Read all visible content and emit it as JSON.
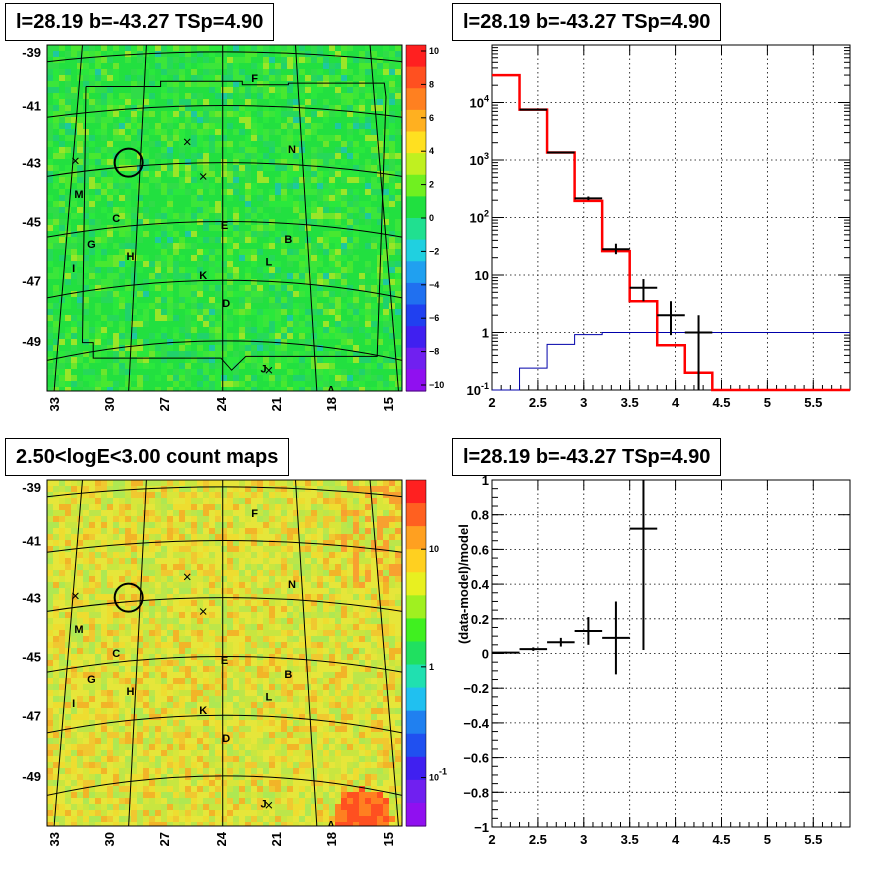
{
  "titles": {
    "tl": "l=28.19 b=-43.27 TSp=4.90",
    "tr": "l=28.19 b=-43.27 TSp=4.90",
    "bl": "2.50<logE<3.00 count maps",
    "br": "l=28.19 b=-43.27 TSp=4.90"
  },
  "colors": {
    "map_green": "#27e63a",
    "map_yellow": "#e6e63a",
    "model": "#ff0000",
    "data": "#000000",
    "bkg": "#0000aa"
  },
  "chart_data": [
    {
      "type": "heatmap",
      "title": "l=28.19 b=-43.27 TSp=4.90",
      "x_ticks": [
        "33",
        "30",
        "27",
        "24",
        "21",
        "18",
        "15"
      ],
      "y_ticks": [
        "-39",
        "-41",
        "-43",
        "-45",
        "-47",
        "-49"
      ],
      "colorbar": {
        "labels": [
          "10",
          "8",
          "6",
          "4",
          "2",
          "0",
          "−2",
          "−4",
          "−6",
          "−8",
          "−10"
        ],
        "range": [
          -10,
          10
        ]
      },
      "source_labels": [
        "F",
        "N",
        "M",
        "C",
        "E",
        "B",
        "G",
        "H",
        "I",
        "L",
        "K",
        "D",
        "J",
        "A"
      ]
    },
    {
      "type": "line",
      "title": "l=28.19 b=-43.27 TSp=4.90",
      "y_scale": "log",
      "xlim": [
        2.0,
        5.9
      ],
      "ylim": [
        0.1,
        100000
      ],
      "x_ticks": [
        "2",
        "2.5",
        "3",
        "3.5",
        "4",
        "4.5",
        "5",
        "5.5"
      ],
      "y_ticks": [
        "10^-1",
        "1",
        "10",
        "10^2",
        "10^3",
        "10^4"
      ],
      "edges": [
        2.0,
        2.3,
        2.6,
        2.9,
        3.2,
        3.5,
        3.8,
        4.1,
        4.4,
        5.9
      ],
      "series": [
        {
          "kind": "model",
          "values": [
            30000,
            7500,
            1350,
            195,
            26,
            3.5,
            0.6,
            0.2,
            0.1
          ]
        },
        {
          "kind": "background",
          "values": [
            0.1,
            0.24,
            0.62,
            0.92,
            1.0,
            1.0,
            1.0,
            1.0,
            1.0
          ]
        },
        {
          "kind": "data",
          "points": [
            {
              "x": 2.45,
              "y": 7500,
              "lo": 7400,
              "hi": 7650,
              "dx": 0.15
            },
            {
              "x": 2.75,
              "y": 1350,
              "lo": 1300,
              "hi": 1400,
              "dx": 0.15
            },
            {
              "x": 3.05,
              "y": 215,
              "lo": 200,
              "hi": 232,
              "dx": 0.15
            },
            {
              "x": 3.35,
              "y": 28,
              "lo": 23,
              "hi": 35,
              "dx": 0.15
            },
            {
              "x": 3.65,
              "y": 6,
              "lo": 3.5,
              "hi": 8.5,
              "dx": 0.15
            },
            {
              "x": 3.95,
              "y": 2,
              "lo": 0.9,
              "hi": 3.5,
              "dx": 0.15
            },
            {
              "x": 4.25,
              "y": 1,
              "lo": 0.1,
              "hi": 2.0,
              "dx": 0.15
            }
          ]
        }
      ]
    },
    {
      "type": "heatmap",
      "title": "2.50<logE<3.00 count maps",
      "x_ticks": [
        "33",
        "30",
        "27",
        "24",
        "21",
        "18",
        "15"
      ],
      "y_ticks": [
        "-39",
        "-41",
        "-43",
        "-45",
        "-47",
        "-49"
      ],
      "colorbar": {
        "scale": "log",
        "labels": [
          "10",
          "1",
          "10^-1"
        ]
      },
      "source_labels": [
        "F",
        "N",
        "M",
        "C",
        "E",
        "B",
        "G",
        "H",
        "I",
        "L",
        "K",
        "D",
        "J",
        "A"
      ]
    },
    {
      "type": "scatter",
      "title": "l=28.19 b=-43.27 TSp=4.90",
      "ylabel": "(data-model)/model",
      "xlim": [
        2.0,
        5.9
      ],
      "ylim": [
        -1,
        1
      ],
      "x_ticks": [
        "2",
        "2.5",
        "3",
        "3.5",
        "4",
        "4.5",
        "5",
        "5.5"
      ],
      "y_ticks": [
        "−1",
        "−0.8",
        "−0.6",
        "−0.4",
        "−0.2",
        "0",
        "0.2",
        "0.4",
        "0.6",
        "0.8",
        "1"
      ],
      "points": [
        {
          "x": 2.15,
          "y": 0.005,
          "lo": 0.0,
          "hi": 0.01,
          "dx": 0.15
        },
        {
          "x": 2.45,
          "y": 0.025,
          "lo": 0.015,
          "hi": 0.035,
          "dx": 0.15
        },
        {
          "x": 2.75,
          "y": 0.065,
          "lo": 0.04,
          "hi": 0.09,
          "dx": 0.15
        },
        {
          "x": 3.05,
          "y": 0.13,
          "lo": 0.05,
          "hi": 0.21,
          "dx": 0.15
        },
        {
          "x": 3.35,
          "y": 0.09,
          "lo": -0.12,
          "hi": 0.3,
          "dx": 0.15
        },
        {
          "x": 3.65,
          "y": 0.72,
          "lo": 0.02,
          "hi": 1.0,
          "dx": 0.15
        }
      ]
    }
  ]
}
